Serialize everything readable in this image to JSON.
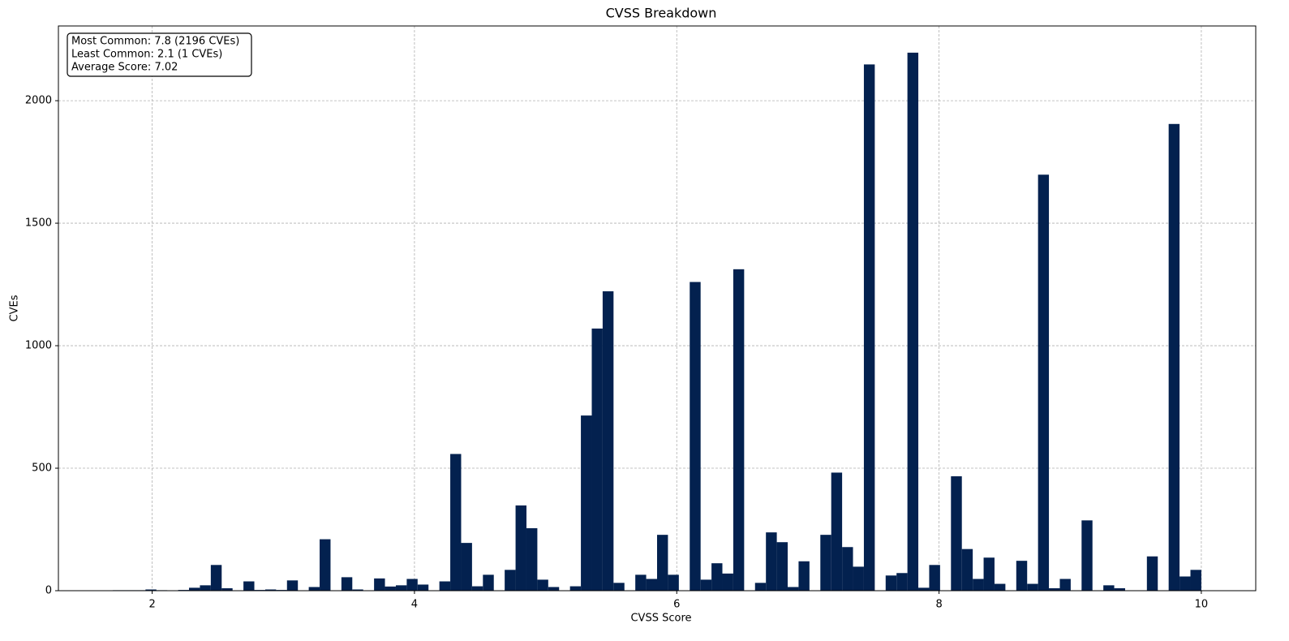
{
  "chart_data": {
    "type": "histogram",
    "title": "CVSS Breakdown",
    "x_label": "CVSS Score",
    "y_label": "CVEs",
    "annotation": [
      "Most Common: 7.8 (2196 CVEs)",
      "Least Common: 2.1 (1 CVEs)",
      "Average Score: 7.02"
    ],
    "color": "#03214f",
    "grid": true,
    "bins": [
      1.7,
      1.783,
      1.866,
      1.949,
      2.032,
      2.115,
      2.198,
      2.281,
      2.364,
      2.447,
      2.53,
      2.613,
      2.696,
      2.779,
      2.862,
      2.945,
      3.028,
      3.111,
      3.194,
      3.277,
      3.36,
      3.443,
      3.526,
      3.609,
      3.692,
      3.775,
      3.858,
      3.941,
      4.024,
      4.107,
      4.19,
      4.273,
      4.356,
      4.439,
      4.522,
      4.605,
      4.688,
      4.771,
      4.854,
      4.937,
      5.02,
      5.103,
      5.186,
      5.269,
      5.352,
      5.435,
      5.518,
      5.601,
      5.684,
      5.767,
      5.85,
      5.933,
      6.016,
      6.099,
      6.182,
      6.265,
      6.348,
      6.431,
      6.514,
      6.597,
      6.68,
      6.763,
      6.846,
      6.929,
      7.012,
      7.095,
      7.178,
      7.261,
      7.344,
      7.427,
      7.51,
      7.593,
      7.676,
      7.759,
      7.842,
      7.925,
      8.008,
      8.091,
      8.174,
      8.257,
      8.34,
      8.423,
      8.506,
      8.589,
      8.672,
      8.755,
      8.838,
      8.921,
      9.004,
      9.087,
      9.17,
      9.253,
      9.336,
      9.419,
      9.502,
      9.585,
      9.668,
      9.751,
      9.834,
      9.917,
      10.0
    ],
    "counts": [
      2,
      2,
      2,
      5,
      2,
      1,
      3,
      12,
      22,
      105,
      10,
      0,
      38,
      3,
      5,
      3,
      42,
      0,
      15,
      210,
      0,
      55,
      5,
      0,
      50,
      17,
      22,
      48,
      25,
      0,
      38,
      558,
      195,
      18,
      65,
      0,
      85,
      348,
      255,
      45,
      15,
      0,
      18,
      715,
      1070,
      1222,
      32,
      0,
      65,
      48,
      228,
      65,
      0,
      1260,
      45,
      112,
      70,
      1312,
      0,
      32,
      238,
      198,
      15,
      120,
      0,
      228,
      482,
      178,
      98,
      2148,
      0,
      62,
      72,
      2196,
      12,
      105,
      0,
      467,
      170,
      48,
      135,
      28,
      0,
      122,
      28,
      1698,
      10,
      48,
      0,
      287,
      0,
      22,
      10,
      0,
      0,
      140,
      0,
      1905,
      58,
      85
    ],
    "xlim": [
      1.285,
      10.415
    ],
    "xticks": [
      2,
      4,
      6,
      8,
      10
    ],
    "ylim": [
      0,
      2305
    ],
    "yticks": [
      0,
      500,
      1000,
      1500,
      2000
    ]
  }
}
